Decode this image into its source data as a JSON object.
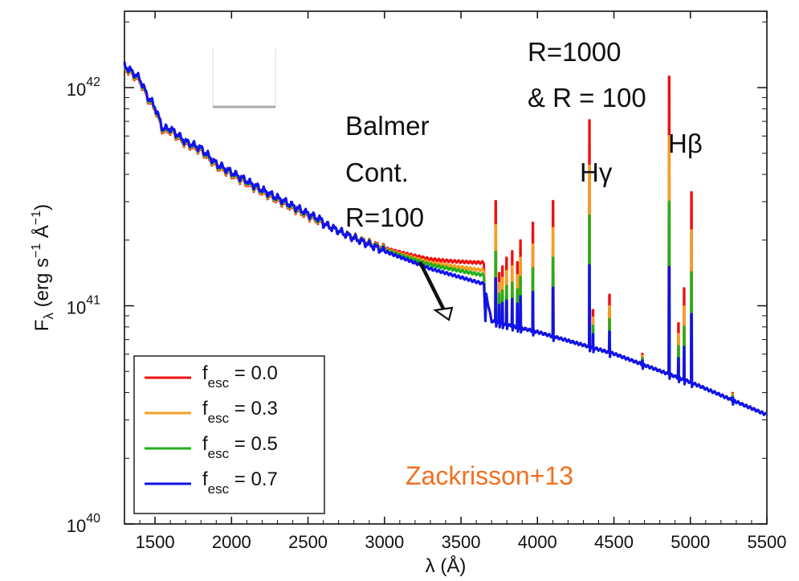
{
  "chart_data": {
    "type": "line",
    "xlabel": "λ (Å)",
    "ylabel": "F_λ (erg s⁻¹ Å⁻¹)",
    "xlim": [
      1300,
      5500
    ],
    "ylim": [
      1e+40,
      1e+42
    ],
    "yscale": "log",
    "x_ticks": [
      1500,
      2000,
      2500,
      3000,
      3500,
      4000,
      4500,
      5000,
      5500
    ],
    "y_ticks": [
      {
        "base": "10",
        "exp": "40"
      },
      {
        "base": "10",
        "exp": "41"
      },
      {
        "base": "10",
        "exp": "42"
      }
    ],
    "series": [
      {
        "name": "f_esc = 0.0",
        "sub": "esc",
        "value": "= 0.0",
        "color": "#ee1111",
        "balmer_offset": 0.085,
        "line_scale": 1.0
      },
      {
        "name": "f_esc = 0.3",
        "sub": "esc",
        "value": "= 0.3",
        "color": "#f5a020",
        "balmer_offset": 0.055,
        "line_scale": 0.8
      },
      {
        "name": "f_esc = 0.5",
        "sub": "esc",
        "value": "= 0.5",
        "color": "#22b01c",
        "balmer_offset": 0.035,
        "line_scale": 0.58
      },
      {
        "name": "f_esc = 0.7",
        "sub": "esc",
        "value": "= 0.7",
        "color": "#1111ee",
        "balmer_offset": 0.0,
        "line_scale": 0.36
      }
    ],
    "continuum": {
      "x": [
        1300,
        1400,
        1450,
        1500,
        1550,
        1600,
        1700,
        1800,
        1900,
        2000,
        2200,
        2500,
        2800,
        3000,
        3300,
        3650,
        3700,
        4000,
        4500,
        5000,
        5500
      ],
      "log_y": [
        42.09,
        42.03,
        41.95,
        41.9,
        41.8,
        41.8,
        41.74,
        41.71,
        41.64,
        41.6,
        41.52,
        41.41,
        41.31,
        41.25,
        41.17,
        41.1,
        40.93,
        40.88,
        40.78,
        40.65,
        40.5
      ]
    },
    "emission_lines": [
      {
        "x": 3727,
        "log_peak": 41.48
      },
      {
        "x": 3750,
        "log_peak": 41.15
      },
      {
        "x": 3771,
        "log_peak": 41.18
      },
      {
        "x": 3798,
        "log_peak": 41.22
      },
      {
        "x": 3835,
        "log_peak": 41.25
      },
      {
        "x": 3869,
        "log_peak": 41.2
      },
      {
        "x": 3889,
        "log_peak": 41.3
      },
      {
        "x": 3970,
        "log_peak": 41.38
      },
      {
        "x": 4102,
        "log_peak": 41.48
      },
      {
        "x": 4340,
        "log_peak": 41.85
      },
      {
        "x": 4363,
        "log_peak": 40.98
      },
      {
        "x": 4471,
        "log_peak": 41.05
      },
      {
        "x": 4686,
        "log_peak": 40.78
      },
      {
        "x": 4861,
        "log_peak": 42.05
      },
      {
        "x": 4922,
        "log_peak": 40.92
      },
      {
        "x": 4959,
        "log_peak": 41.08
      },
      {
        "x": 5007,
        "log_peak": 41.52
      },
      {
        "x": 5276,
        "log_peak": 40.6
      }
    ],
    "annotations": {
      "balmer": [
        "Balmer",
        "Cont.",
        "R=100"
      ],
      "resolution": [
        "R=1000",
        "& R = 100"
      ],
      "hgamma": "Hγ",
      "hbeta": "Hβ",
      "credit": "Zackrisson+13"
    }
  },
  "colors": {
    "credit": "#f07020",
    "axis": "#111111",
    "legend_key_gray": "#aaaaaa"
  }
}
